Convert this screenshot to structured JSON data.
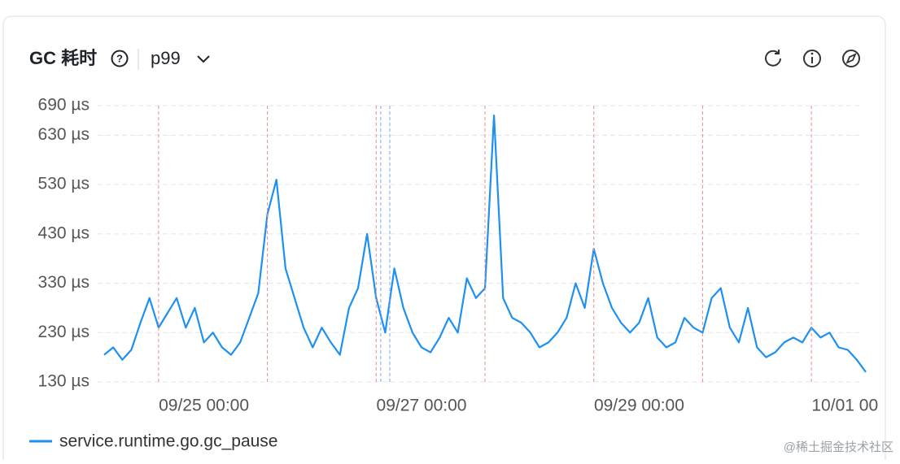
{
  "header": {
    "title": "GC 耗时",
    "percentile": "p99"
  },
  "watermark": "@稀土掘金技术社区",
  "chart_data": {
    "type": "line",
    "x": [
      "09/24 02:00",
      "09/24 04:00",
      "09/24 06:00",
      "09/24 08:00",
      "09/24 10:00",
      "09/24 12:00",
      "09/24 14:00",
      "09/24 16:00",
      "09/24 18:00",
      "09/24 20:00",
      "09/24 22:00",
      "09/25 00:00",
      "09/25 02:00",
      "09/25 04:00",
      "09/25 06:00",
      "09/25 08:00",
      "09/25 10:00",
      "09/25 12:00",
      "09/25 14:00",
      "09/25 16:00",
      "09/25 18:00",
      "09/25 20:00",
      "09/25 22:00",
      "09/26 00:00",
      "09/26 02:00",
      "09/26 04:00",
      "09/26 06:00",
      "09/26 08:00",
      "09/26 10:00",
      "09/26 12:00",
      "09/26 14:00",
      "09/26 16:00",
      "09/26 18:00",
      "09/26 20:00",
      "09/26 22:00",
      "09/27 00:00",
      "09/27 02:00",
      "09/27 04:00",
      "09/27 06:00",
      "09/27 08:00",
      "09/27 10:00",
      "09/27 12:00",
      "09/27 14:00",
      "09/27 16:00",
      "09/27 18:00",
      "09/27 20:00",
      "09/27 22:00",
      "09/28 00:00",
      "09/28 02:00",
      "09/28 04:00",
      "09/28 06:00",
      "09/28 08:00",
      "09/28 10:00",
      "09/28 12:00",
      "09/28 14:00",
      "09/28 16:00",
      "09/28 18:00",
      "09/28 20:00",
      "09/28 22:00",
      "09/29 00:00",
      "09/29 02:00",
      "09/29 04:00",
      "09/29 06:00",
      "09/29 08:00",
      "09/29 10:00",
      "09/29 12:00",
      "09/29 14:00",
      "09/29 16:00",
      "09/29 18:00",
      "09/29 20:00",
      "09/29 22:00",
      "09/30 00:00",
      "09/30 02:00",
      "09/30 04:00",
      "09/30 06:00",
      "09/30 08:00",
      "09/30 10:00",
      "09/30 12:00",
      "09/30 14:00",
      "09/30 16:00",
      "09/30 18:00",
      "09/30 20:00",
      "09/30 22:00",
      "10/01 00:00",
      "10/01 02:00"
    ],
    "series": [
      {
        "name": "service.runtime.go.gc_pause",
        "color": "#1e90f0",
        "values": [
          185,
          200,
          175,
          195,
          250,
          300,
          240,
          270,
          300,
          240,
          280,
          210,
          230,
          200,
          185,
          210,
          260,
          310,
          470,
          540,
          360,
          300,
          240,
          200,
          240,
          210,
          185,
          280,
          320,
          430,
          300,
          230,
          360,
          280,
          230,
          200,
          190,
          220,
          260,
          230,
          340,
          300,
          320,
          670,
          300,
          260,
          250,
          230,
          200,
          210,
          230,
          260,
          330,
          280,
          400,
          330,
          280,
          250,
          230,
          250,
          300,
          220,
          200,
          210,
          260,
          240,
          230,
          300,
          320,
          240,
          210,
          280,
          200,
          180,
          190,
          210,
          220,
          210,
          240,
          220,
          230,
          200,
          195,
          175,
          150
        ]
      }
    ],
    "xlim": [
      "09/24 02:00",
      "10/01 02:00"
    ],
    "xticks": [
      "09/25 00:00",
      "09/27 00:00",
      "09/29 00:00",
      "10/01 00:00"
    ],
    "ylim": [
      130,
      690
    ],
    "yticks": [
      {
        "value": 130,
        "label": "130 µs"
      },
      {
        "value": 230,
        "label": "230 µs"
      },
      {
        "value": 330,
        "label": "330 µs"
      },
      {
        "value": 430,
        "label": "430 µs"
      },
      {
        "value": 530,
        "label": "530 µs"
      },
      {
        "value": 630,
        "label": "630 µs"
      },
      {
        "value": 690,
        "label": "690 µs"
      }
    ],
    "grid": true,
    "reference_lines": [
      {
        "x": "09/24 14:00",
        "color": "#f08a8a"
      },
      {
        "x": "09/25 14:00",
        "color": "#f08a8a"
      },
      {
        "x": "09/26 14:00",
        "color": "#f08a8a"
      },
      {
        "x": "09/26 15:00",
        "color": "#7aa6f0"
      },
      {
        "x": "09/26 17:00",
        "color": "#7aa6f0"
      },
      {
        "x": "09/27 14:00",
        "color": "#f08a8a"
      },
      {
        "x": "09/28 14:00",
        "color": "#f08a8a"
      },
      {
        "x": "09/29 14:00",
        "color": "#f08a8a"
      },
      {
        "x": "09/30 14:00",
        "color": "#f08a8a"
      }
    ]
  }
}
